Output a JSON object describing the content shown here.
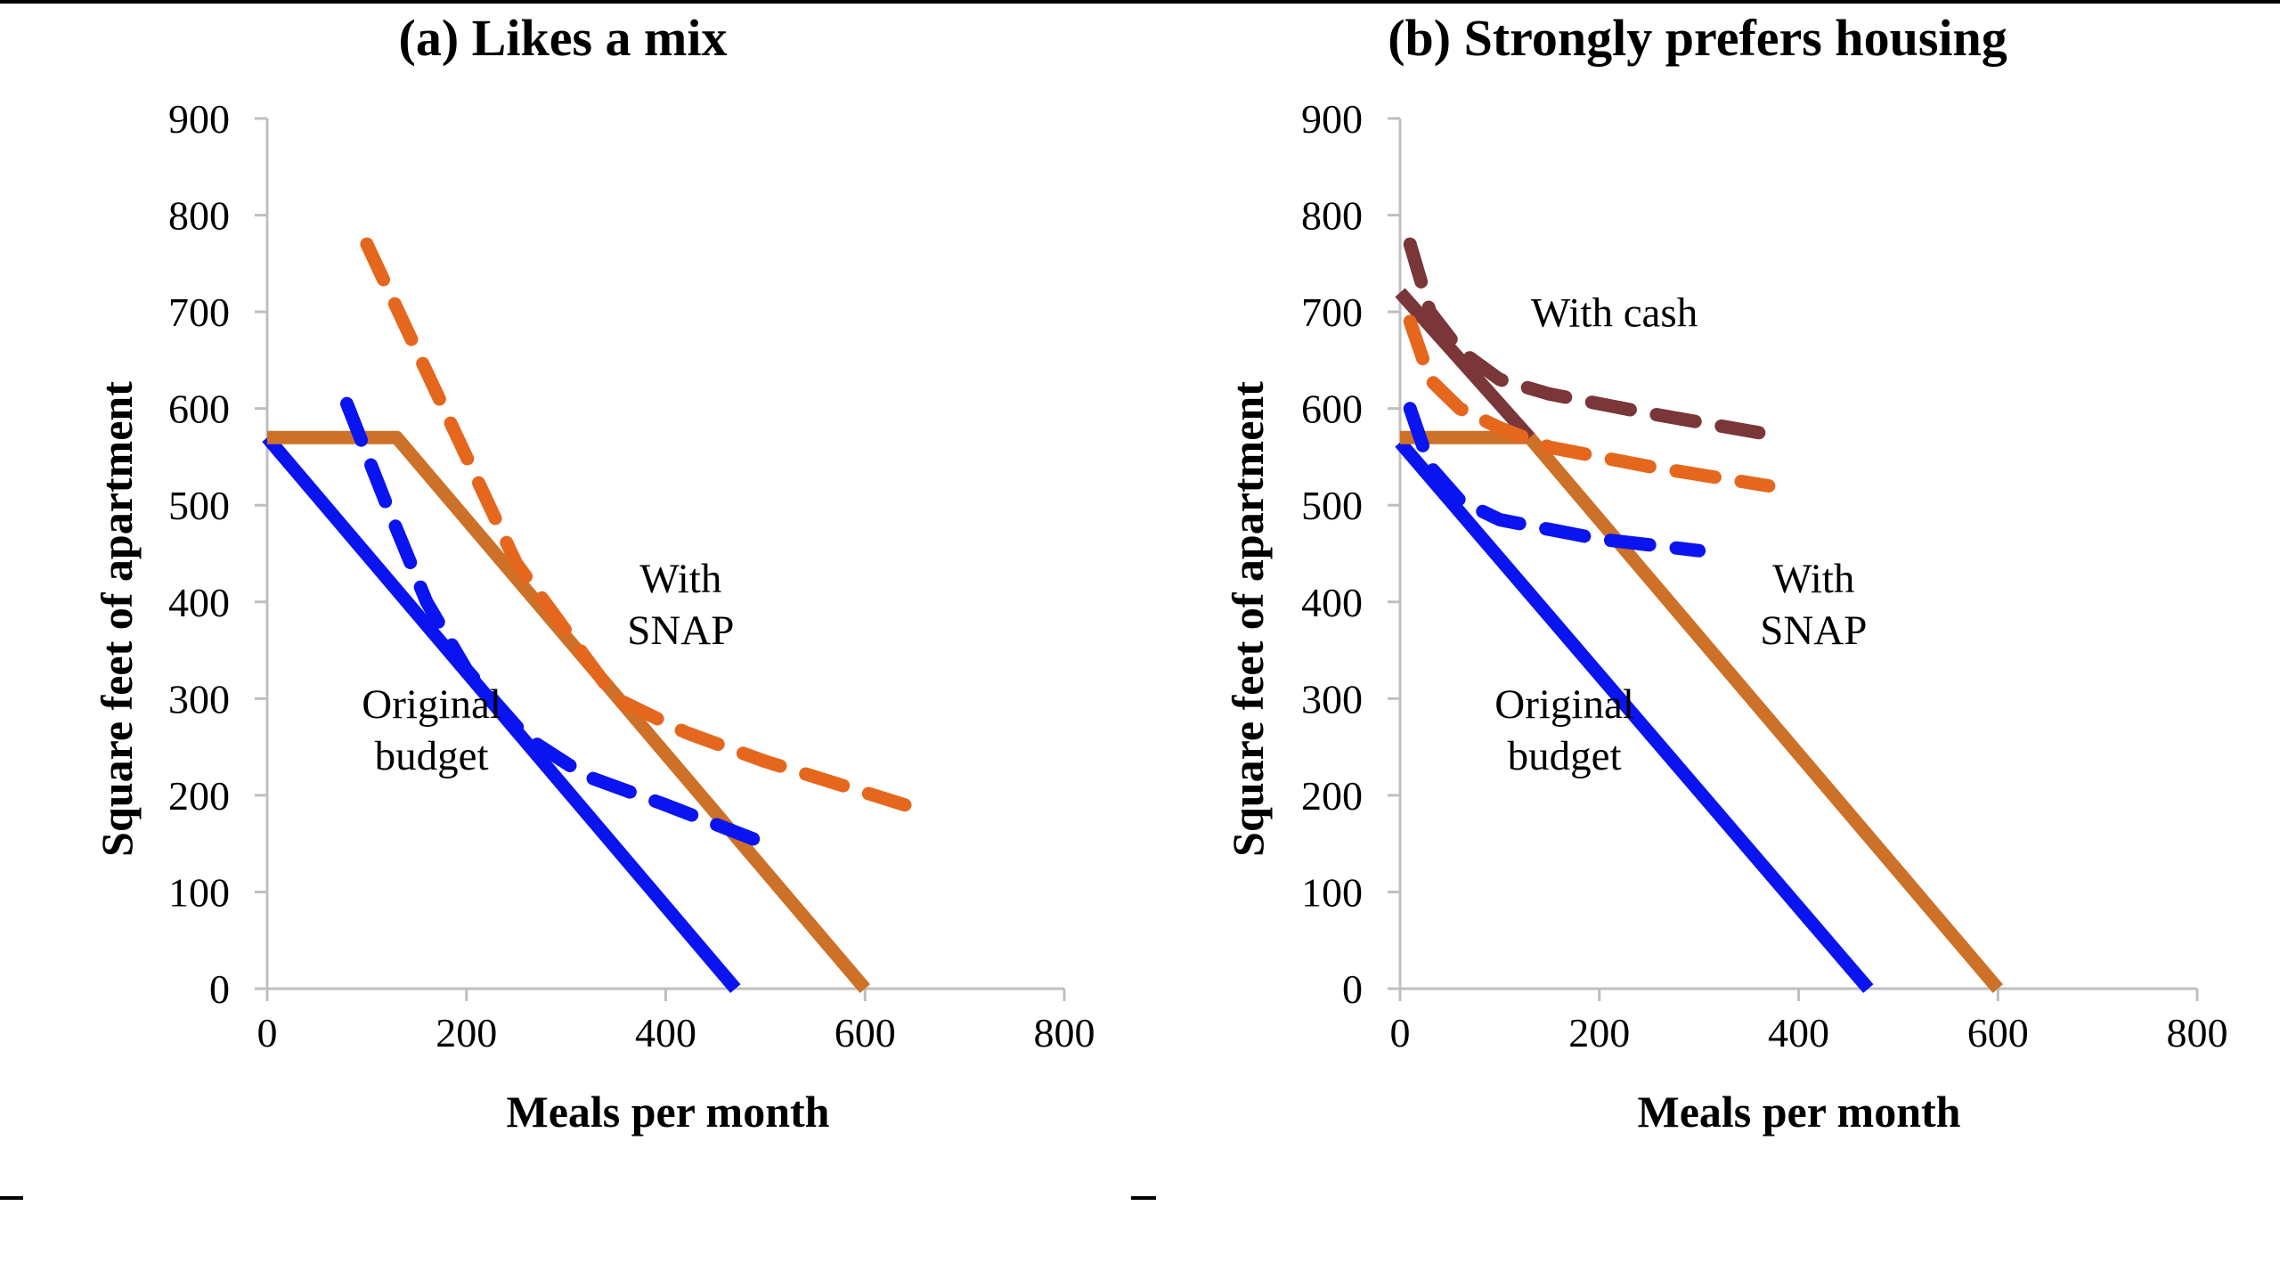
{
  "chart_data": [
    {
      "type": "line",
      "title": "(a) Likes a mix",
      "xlabel": "Meals per month",
      "ylabel": "Square feet of apartment",
      "xlim": [
        0,
        800
      ],
      "ylim": [
        0,
        900
      ],
      "xticks": [
        "0",
        "200",
        "400",
        "600",
        "800"
      ],
      "yticks": [
        "0",
        "100",
        "200",
        "300",
        "400",
        "500",
        "600",
        "700",
        "800",
        "900"
      ],
      "grid": false,
      "legend": "none",
      "series": [
        {
          "style": "solid",
          "color": "#0A14F0",
          "points": [
            [
              0,
              570
            ],
            [
              470,
              0
            ]
          ]
        },
        {
          "style": "solid",
          "color": "#CD7128",
          "points": [
            [
              0,
              570
            ],
            [
              130,
              570
            ],
            [
              600,
              0
            ]
          ]
        },
        {
          "style": "dashed",
          "color": "#0A14F0",
          "points": [
            [
              80,
              605
            ],
            [
              120,
              500
            ],
            [
              160,
              400
            ],
            [
              200,
              330
            ],
            [
              260,
              260
            ],
            [
              320,
              220
            ],
            [
              400,
              190
            ],
            [
              500,
              150
            ]
          ]
        },
        {
          "style": "dashed",
          "color": "#E5671E",
          "points": [
            [
              100,
              770
            ],
            [
              150,
              660
            ],
            [
              200,
              550
            ],
            [
              250,
              440
            ],
            [
              300,
              370
            ],
            [
              350,
              300
            ],
            [
              420,
              265
            ],
            [
              500,
              235
            ],
            [
              640,
              190
            ]
          ]
        }
      ],
      "annotations": [
        {
          "text": [
            "With",
            "SNAP"
          ],
          "x": 415,
          "y": 410
        },
        {
          "text": [
            "Original",
            "budget"
          ],
          "x": 165,
          "y": 280
        }
      ]
    },
    {
      "type": "line",
      "title": "(b) Strongly prefers housing",
      "xlabel": "Meals per month",
      "ylabel": "Square feet of apartment",
      "xlim": [
        0,
        800
      ],
      "ylim": [
        0,
        900
      ],
      "xticks": [
        "0",
        "200",
        "400",
        "600",
        "800"
      ],
      "yticks": [
        "0",
        "100",
        "200",
        "300",
        "400",
        "500",
        "600",
        "700",
        "800",
        "900"
      ],
      "grid": false,
      "legend": "none",
      "series": [
        {
          "style": "solid",
          "color": "#0A14F0",
          "points": [
            [
              0,
              565
            ],
            [
              470,
              0
            ]
          ]
        },
        {
          "style": "solid",
          "color": "#CD7128",
          "points": [
            [
              0,
              570
            ],
            [
              130,
              570
            ],
            [
              600,
              0
            ]
          ]
        },
        {
          "style": "solid",
          "color": "#7A3638",
          "points": [
            [
              0,
              720
            ],
            [
              130,
              570
            ]
          ]
        },
        {
          "style": "dashed",
          "color": "#0A14F0",
          "points": [
            [
              10,
              600
            ],
            [
              30,
              540
            ],
            [
              60,
              505
            ],
            [
              100,
              485
            ],
            [
              150,
              475
            ],
            [
              200,
              465
            ],
            [
              300,
              453
            ]
          ]
        },
        {
          "style": "dashed",
          "color": "#E5671E",
          "points": [
            [
              10,
              690
            ],
            [
              30,
              630
            ],
            [
              60,
              600
            ],
            [
              100,
              580
            ],
            [
              150,
              560
            ],
            [
              250,
              540
            ],
            [
              370,
              520
            ]
          ]
        },
        {
          "style": "dashed",
          "color": "#7A3638",
          "points": [
            [
              10,
              770
            ],
            [
              30,
              700
            ],
            [
              60,
              660
            ],
            [
              100,
              630
            ],
            [
              150,
              615
            ],
            [
              250,
              595
            ],
            [
              360,
              575
            ]
          ]
        }
      ],
      "annotations": [
        {
          "text": [
            "With cash"
          ],
          "x": 215,
          "y": 685
        },
        {
          "text": [
            "With",
            "SNAP"
          ],
          "x": 415,
          "y": 410
        },
        {
          "text": [
            "Original",
            "budget"
          ],
          "x": 165,
          "y": 280
        }
      ]
    }
  ],
  "decor": {
    "axis_color": "#bfbfbf",
    "frame_line_color": "#000000"
  }
}
